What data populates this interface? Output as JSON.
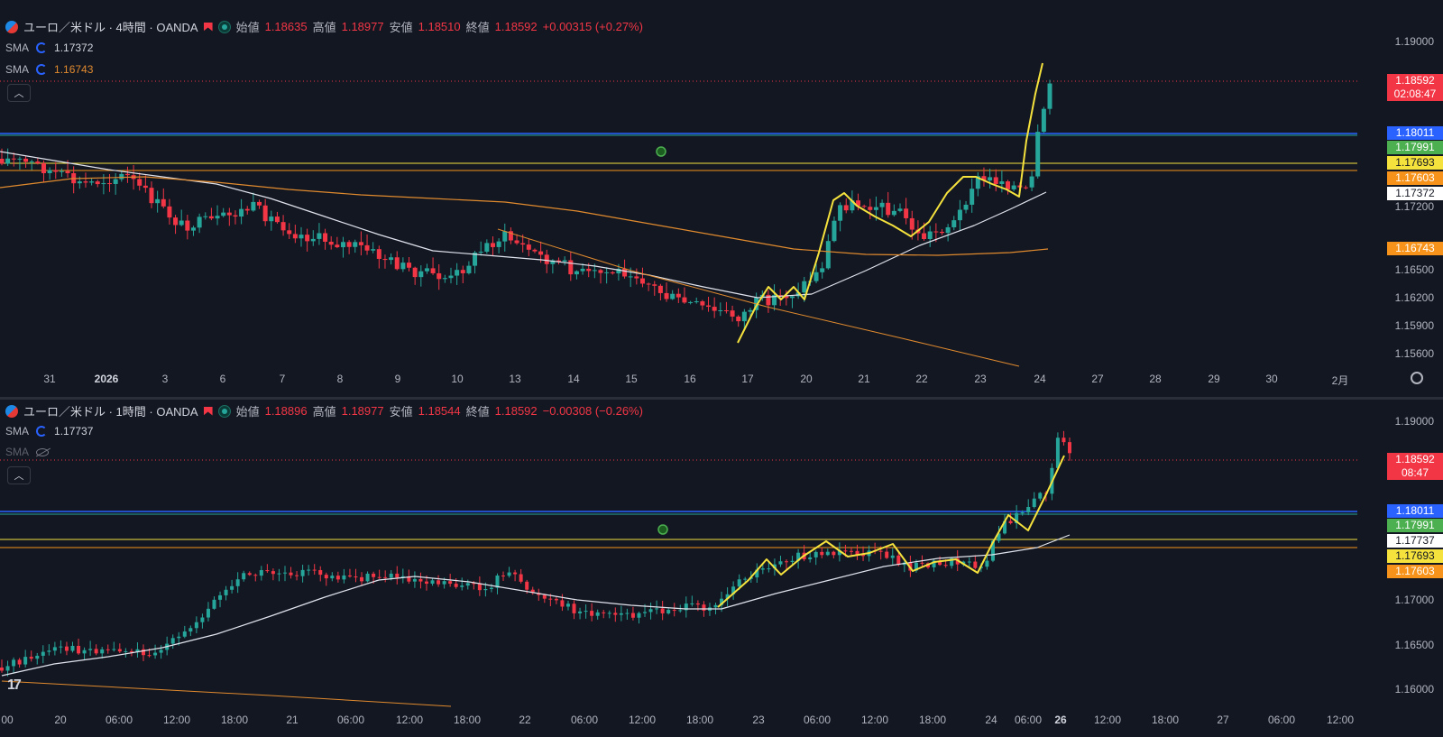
{
  "colors": {
    "bg": "#131722",
    "up": "#26a69a",
    "down": "#f23645",
    "sma_white": "#e0e3eb",
    "sma_orange": "#e08a2e",
    "trend": "#f0c000",
    "blue_line": "#2962ff",
    "text": "#d1d4dc"
  },
  "top_panel": {
    "symbol": "ユーロ／米ドル · 4時間 · OANDA",
    "open_label": "始値",
    "open": "1.18635",
    "high_label": "高値",
    "high": "1.18977",
    "low_label": "安値",
    "low": "1.18510",
    "close_label": "終値",
    "close": "1.18592",
    "change": "+0.00315 (+0.27%)",
    "indicators": [
      {
        "name": "SMA",
        "value": "1.17372",
        "color": "#d1d4dc"
      },
      {
        "name": "SMA",
        "value": "1.16743",
        "color": "#e08a2e"
      }
    ],
    "price_axis": [
      "1.19000",
      "1.17200",
      "1.16500",
      "1.16200",
      "1.15900",
      "1.15600"
    ],
    "price_tags": [
      {
        "value": "1.18592",
        "sub": "02:08:47",
        "color": "#f23645",
        "icon": "last-price"
      },
      {
        "value": "1.18011",
        "color": "#2962ff",
        "icon": "line-blue"
      },
      {
        "value": "1.17991",
        "color": "#4caf50",
        "icon": "line-green"
      },
      {
        "value": "1.17693",
        "color": "#f5e23d",
        "icon": "line-yellow"
      },
      {
        "value": "1.17603",
        "color": "#f7931a",
        "icon": "line-orange"
      },
      {
        "value": "1.17372",
        "color": "#ffffff",
        "icon": "sma-white"
      },
      {
        "value": "1.16743",
        "color": "#f7931a",
        "icon": "sma-orange"
      }
    ],
    "time_axis": [
      "31",
      "2026",
      "3",
      "6",
      "7",
      "8",
      "9",
      "10",
      "13",
      "14",
      "15",
      "16",
      "17",
      "20",
      "21",
      "22",
      "23",
      "24",
      "27",
      "28",
      "29",
      "30",
      "2月"
    ],
    "collapse_icon": "chevron-up-icon",
    "settings_icon": "gear-icon"
  },
  "bottom_panel": {
    "symbol": "ユーロ／米ドル · 1時間 · OANDA",
    "open_label": "始値",
    "open": "1.18896",
    "high_label": "高値",
    "high": "1.18977",
    "low_label": "安値",
    "low": "1.18544",
    "close_label": "終値",
    "close": "1.18592",
    "change": "−0.00308 (−0.26%)",
    "indicators": [
      {
        "name": "SMA",
        "value": "1.17737",
        "color": "#d1d4dc"
      },
      {
        "name": "SMA",
        "value": "",
        "hidden": true
      }
    ],
    "price_axis": [
      "1.19000",
      "1.17000",
      "1.16500",
      "1.16000"
    ],
    "price_tags": [
      {
        "value": "1.18592",
        "sub": "08:47",
        "color": "#f23645",
        "icon": "last-price"
      },
      {
        "value": "1.18011",
        "color": "#2962ff",
        "icon": "line-blue"
      },
      {
        "value": "1.17991",
        "color": "#4caf50",
        "icon": "line-green"
      },
      {
        "value": "1.17737",
        "color": "#ffffff",
        "icon": "sma-white"
      },
      {
        "value": "1.17693",
        "color": "#f5e23d",
        "icon": "line-yellow"
      },
      {
        "value": "1.17603",
        "color": "#f7931a",
        "icon": "line-orange"
      }
    ],
    "time_axis": [
      "00",
      "20",
      "06:00",
      "12:00",
      "18:00",
      "21",
      "06:00",
      "12:00",
      "18:00",
      "22",
      "06:00",
      "12:00",
      "18:00",
      "23",
      "06:00",
      "12:00",
      "18:00",
      "24",
      "06:00",
      "26",
      "12:00",
      "18:00",
      "27",
      "06:00",
      "12:00"
    ],
    "logo": "17",
    "collapse_icon": "chevron-up-icon"
  }
}
